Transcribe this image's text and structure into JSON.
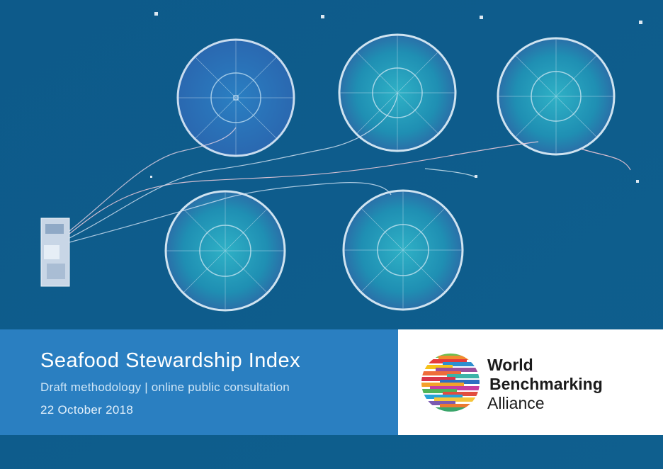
{
  "cover": {
    "title": "Seafood Stewardship Index",
    "subtitle": "Draft methodology | online public consultation",
    "date": "22 October 2018"
  },
  "logo": {
    "line1": "World",
    "line2": "Benchmarking",
    "line3": "Alliance",
    "icon": "striped-globe-icon"
  },
  "colors": {
    "sea": "#0f5b8c",
    "band": "#2a7fc1",
    "pen_water": "#1f97b4"
  }
}
